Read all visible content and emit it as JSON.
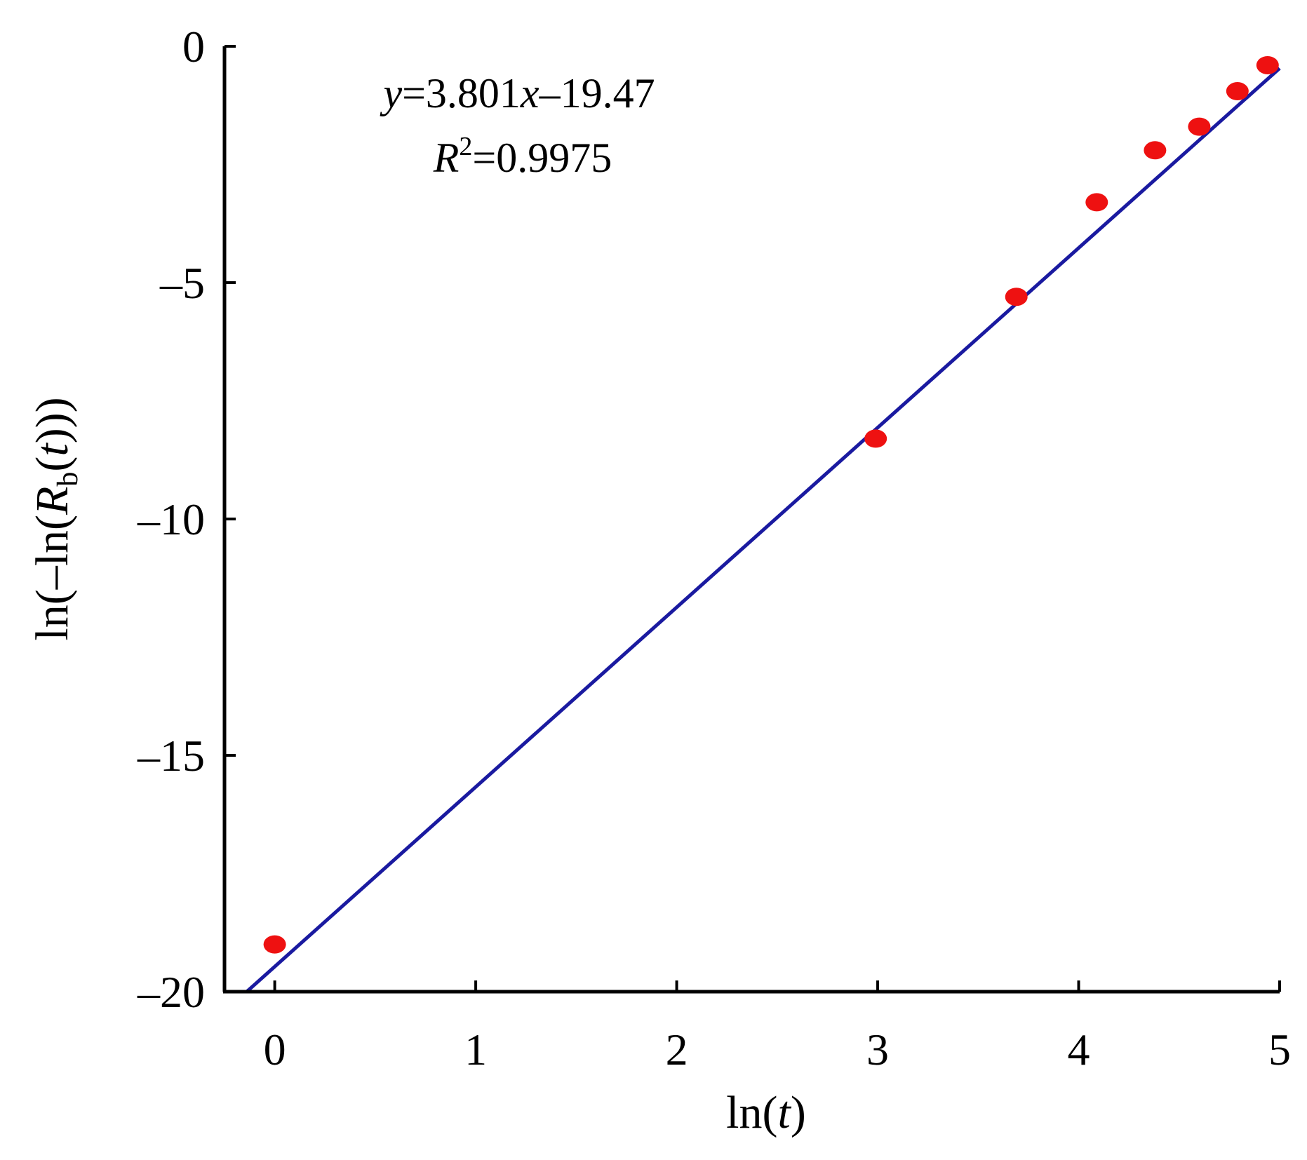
{
  "chart_data": {
    "type": "scatter",
    "xlabel": {
      "prefix": "ln(",
      "var": "t",
      "suffix": ")"
    },
    "ylabel": {
      "prefix": "ln(–ln(",
      "var": "R",
      "sub": "b",
      "mid": "(",
      "var2": "t",
      "suffix": ")))"
    },
    "xlim": [
      -0.25,
      5
    ],
    "ylim": [
      -20,
      0
    ],
    "xticks": [
      0,
      1,
      2,
      3,
      4,
      5
    ],
    "yticks": [
      0,
      -5,
      -10,
      -15,
      -20
    ],
    "ytick_labels": [
      "0",
      "–5",
      "–10",
      "–15",
      "–20"
    ],
    "grid": false,
    "series": [
      {
        "points": [
          {
            "x": 0.0,
            "y": -19.0
          },
          {
            "x": 2.99,
            "y": -8.3
          },
          {
            "x": 3.69,
            "y": -5.3
          },
          {
            "x": 4.09,
            "y": -3.3
          },
          {
            "x": 4.38,
            "y": -2.2
          },
          {
            "x": 4.6,
            "y": -1.7
          },
          {
            "x": 4.79,
            "y": -0.95
          },
          {
            "x": 4.94,
            "y": -0.4
          }
        ],
        "color": "#ee1111"
      }
    ],
    "fit": {
      "slope": 3.801,
      "intercept": -19.47,
      "color": "#1a1aa0"
    },
    "annotations": {
      "equation": {
        "y_var": "y",
        "rhs": "=3.801",
        "x_var": "x",
        "tail": "–19.47"
      },
      "r2": {
        "r": "R",
        "sup": "2",
        "value": "=0.9975"
      }
    }
  }
}
